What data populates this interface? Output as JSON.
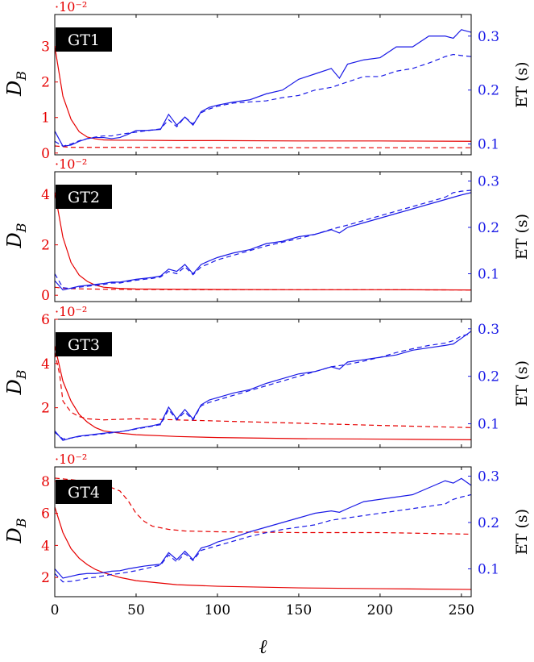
{
  "colors": {
    "left_axis": "#e60000",
    "right_axis": "#1a1ae6",
    "frame": "#000000",
    "badge_bg": "#000000",
    "badge_text": "#ffffff"
  },
  "chart_data": [
    {
      "type": "line",
      "panel_label": "GT1",
      "ylabel_left": "D_B",
      "ylabel_left_plain": "D",
      "ylabel_left_sub": "B",
      "ylabel_right": "ET (s)",
      "left_multiplier": "·10⁻²",
      "x_ticks": [],
      "xlim": [
        0,
        256
      ],
      "ylim_left": [
        -0.05,
        3.9
      ],
      "ylim_right": [
        0.08,
        0.34
      ],
      "yticks_left": [
        0,
        1,
        2,
        3
      ],
      "yticks_right": [
        0.1,
        0.2,
        0.3
      ],
      "series": [
        {
          "axis": "left",
          "style": "solid",
          "x": [
            0,
            5,
            10,
            15,
            20,
            25,
            30,
            40,
            50,
            75,
            100,
            150,
            200,
            256
          ],
          "values": [
            3.0,
            1.6,
            0.95,
            0.6,
            0.45,
            0.4,
            0.37,
            0.36,
            0.36,
            0.35,
            0.35,
            0.34,
            0.34,
            0.33
          ]
        },
        {
          "axis": "left",
          "style": "dashed",
          "x": [
            0,
            5,
            10,
            20,
            30,
            50,
            100,
            150,
            200,
            256
          ],
          "values": [
            0.2,
            0.18,
            0.16,
            0.16,
            0.16,
            0.16,
            0.15,
            0.15,
            0.15,
            0.15
          ]
        },
        {
          "axis": "right",
          "style": "solid",
          "x": [
            0,
            5,
            10,
            15,
            20,
            25,
            30,
            35,
            40,
            45,
            50,
            55,
            60,
            65,
            70,
            75,
            80,
            85,
            90,
            95,
            100,
            110,
            120,
            130,
            140,
            150,
            160,
            170,
            175,
            180,
            190,
            200,
            210,
            220,
            230,
            240,
            245,
            250,
            256
          ],
          "values": [
            0.124,
            0.096,
            0.098,
            0.105,
            0.11,
            0.112,
            0.112,
            0.11,
            0.112,
            0.118,
            0.125,
            0.125,
            0.126,
            0.127,
            0.155,
            0.135,
            0.15,
            0.135,
            0.16,
            0.168,
            0.172,
            0.178,
            0.182,
            0.193,
            0.2,
            0.22,
            0.23,
            0.24,
            0.222,
            0.248,
            0.256,
            0.26,
            0.28,
            0.28,
            0.3,
            0.3,
            0.296,
            0.312,
            0.307
          ]
        },
        {
          "axis": "right",
          "style": "dashed",
          "x": [
            0,
            5,
            10,
            15,
            20,
            25,
            30,
            35,
            40,
            45,
            50,
            55,
            60,
            65,
            70,
            75,
            80,
            85,
            90,
            95,
            100,
            110,
            120,
            130,
            140,
            150,
            160,
            170,
            180,
            190,
            200,
            210,
            220,
            230,
            240,
            245,
            250,
            256
          ],
          "values": [
            0.105,
            0.096,
            0.1,
            0.106,
            0.11,
            0.113,
            0.115,
            0.115,
            0.118,
            0.12,
            0.122,
            0.124,
            0.126,
            0.128,
            0.145,
            0.132,
            0.15,
            0.137,
            0.158,
            0.165,
            0.17,
            0.176,
            0.178,
            0.18,
            0.186,
            0.19,
            0.2,
            0.205,
            0.215,
            0.225,
            0.225,
            0.235,
            0.24,
            0.25,
            0.262,
            0.266,
            0.264,
            0.262
          ]
        }
      ]
    },
    {
      "type": "line",
      "panel_label": "GT2",
      "ylabel_left": "D_B",
      "ylabel_left_plain": "D",
      "ylabel_left_sub": "B",
      "ylabel_right": "ET (s)",
      "left_multiplier": "·10⁻²",
      "x_ticks": [],
      "xlim": [
        0,
        256
      ],
      "ylim_left": [
        -0.25,
        4.9
      ],
      "ylim_right": [
        0.04,
        0.32
      ],
      "yticks_left": [
        0,
        2,
        4
      ],
      "yticks_right": [
        0.1,
        0.2,
        0.3
      ],
      "series": [
        {
          "axis": "left",
          "style": "solid",
          "x": [
            0,
            5,
            10,
            15,
            20,
            25,
            30,
            40,
            50,
            75,
            100,
            150,
            200,
            256
          ],
          "values": [
            4.1,
            2.3,
            1.3,
            0.8,
            0.55,
            0.4,
            0.32,
            0.27,
            0.25,
            0.24,
            0.23,
            0.22,
            0.22,
            0.21
          ]
        },
        {
          "axis": "left",
          "style": "dashed",
          "x": [
            0,
            5,
            10,
            20,
            30,
            50,
            100,
            150,
            200,
            256
          ],
          "values": [
            0.32,
            0.28,
            0.26,
            0.25,
            0.24,
            0.23,
            0.22,
            0.22,
            0.22,
            0.21
          ]
        },
        {
          "axis": "right",
          "style": "solid",
          "x": [
            0,
            5,
            10,
            15,
            20,
            25,
            30,
            35,
            40,
            45,
            50,
            55,
            60,
            65,
            70,
            75,
            80,
            85,
            90,
            95,
            100,
            110,
            120,
            130,
            140,
            150,
            160,
            170,
            175,
            180,
            190,
            200,
            210,
            220,
            230,
            240,
            245,
            250,
            256
          ],
          "values": [
            0.085,
            0.065,
            0.069,
            0.073,
            0.075,
            0.077,
            0.079,
            0.082,
            0.082,
            0.085,
            0.088,
            0.09,
            0.092,
            0.095,
            0.11,
            0.105,
            0.12,
            0.1,
            0.12,
            0.128,
            0.135,
            0.145,
            0.152,
            0.165,
            0.17,
            0.18,
            0.185,
            0.195,
            0.188,
            0.2,
            0.21,
            0.22,
            0.23,
            0.24,
            0.25,
            0.26,
            0.265,
            0.27,
            0.275
          ]
        },
        {
          "axis": "right",
          "style": "dashed",
          "x": [
            0,
            5,
            10,
            15,
            20,
            25,
            30,
            35,
            40,
            45,
            50,
            55,
            60,
            65,
            70,
            75,
            80,
            85,
            90,
            95,
            100,
            110,
            120,
            130,
            140,
            150,
            160,
            170,
            180,
            190,
            200,
            210,
            220,
            230,
            240,
            245,
            250,
            256
          ],
          "values": [
            0.1,
            0.07,
            0.068,
            0.071,
            0.073,
            0.075,
            0.077,
            0.08,
            0.08,
            0.083,
            0.086,
            0.088,
            0.09,
            0.093,
            0.105,
            0.1,
            0.115,
            0.098,
            0.115,
            0.122,
            0.13,
            0.14,
            0.15,
            0.16,
            0.168,
            0.176,
            0.185,
            0.196,
            0.205,
            0.215,
            0.225,
            0.235,
            0.245,
            0.255,
            0.265,
            0.275,
            0.278,
            0.28
          ]
        }
      ]
    },
    {
      "type": "line",
      "panel_label": "GT3",
      "ylabel_left": "D_B",
      "ylabel_left_plain": "D",
      "ylabel_left_sub": "B",
      "ylabel_right": "ET (s)",
      "left_multiplier": "·10⁻²",
      "x_ticks": [],
      "xlim": [
        0,
        256
      ],
      "ylim_left": [
        0.2,
        6.0
      ],
      "ylim_right": [
        0.05,
        0.32
      ],
      "yticks_left": [
        2,
        4,
        6
      ],
      "yticks_right": [
        0.1,
        0.2,
        0.3
      ],
      "series": [
        {
          "axis": "left",
          "style": "solid",
          "x": [
            0,
            5,
            10,
            15,
            20,
            25,
            30,
            40,
            50,
            75,
            100,
            150,
            200,
            256
          ],
          "values": [
            4.8,
            3.2,
            2.3,
            1.7,
            1.35,
            1.1,
            0.95,
            0.85,
            0.78,
            0.7,
            0.65,
            0.6,
            0.58,
            0.55
          ]
        },
        {
          "axis": "left",
          "style": "dashed",
          "x": [
            0,
            3,
            5,
            8,
            10,
            15,
            20,
            30,
            50,
            75,
            100,
            150,
            200,
            256
          ],
          "values": [
            4.5,
            3.5,
            2.3,
            2.0,
            1.8,
            1.6,
            1.5,
            1.45,
            1.5,
            1.45,
            1.4,
            1.3,
            1.2,
            1.1
          ]
        },
        {
          "axis": "right",
          "style": "solid",
          "x": [
            0,
            5,
            10,
            15,
            20,
            25,
            30,
            35,
            40,
            45,
            50,
            55,
            60,
            65,
            70,
            75,
            80,
            85,
            90,
            95,
            100,
            110,
            120,
            130,
            140,
            150,
            160,
            170,
            175,
            180,
            190,
            200,
            210,
            220,
            230,
            240,
            245,
            250,
            256
          ],
          "values": [
            0.085,
            0.065,
            0.07,
            0.074,
            0.076,
            0.078,
            0.08,
            0.082,
            0.083,
            0.086,
            0.09,
            0.093,
            0.096,
            0.1,
            0.135,
            0.11,
            0.13,
            0.11,
            0.14,
            0.15,
            0.155,
            0.165,
            0.172,
            0.185,
            0.195,
            0.205,
            0.21,
            0.22,
            0.215,
            0.23,
            0.235,
            0.24,
            0.245,
            0.255,
            0.26,
            0.265,
            0.268,
            0.28,
            0.295
          ]
        },
        {
          "axis": "right",
          "style": "dashed",
          "x": [
            0,
            5,
            10,
            15,
            20,
            25,
            30,
            35,
            40,
            45,
            50,
            55,
            60,
            65,
            70,
            75,
            80,
            85,
            90,
            95,
            100,
            110,
            120,
            130,
            140,
            150,
            160,
            170,
            180,
            190,
            200,
            210,
            220,
            230,
            240,
            245,
            250,
            256
          ],
          "values": [
            0.082,
            0.068,
            0.07,
            0.073,
            0.075,
            0.077,
            0.079,
            0.081,
            0.083,
            0.086,
            0.089,
            0.092,
            0.095,
            0.098,
            0.13,
            0.108,
            0.125,
            0.108,
            0.138,
            0.145,
            0.15,
            0.16,
            0.17,
            0.18,
            0.19,
            0.2,
            0.21,
            0.22,
            0.225,
            0.232,
            0.24,
            0.25,
            0.258,
            0.265,
            0.27,
            0.275,
            0.285,
            0.29
          ]
        }
      ]
    },
    {
      "type": "line",
      "panel_label": "GT4",
      "ylabel_left": "D_B",
      "ylabel_left_plain": "D",
      "ylabel_left_sub": "B",
      "ylabel_right": "ET (s)",
      "left_multiplier": "·10⁻²",
      "x_ticks": [
        0,
        50,
        100,
        150,
        200,
        250
      ],
      "xlabel": "ℓ",
      "xlim": [
        0,
        256
      ],
      "ylim_left": [
        0.8,
        8.9
      ],
      "ylim_right": [
        0.04,
        0.32
      ],
      "yticks_left": [
        2,
        4,
        6,
        8
      ],
      "yticks_right": [
        0.1,
        0.2,
        0.3
      ],
      "series": [
        {
          "axis": "left",
          "style": "solid",
          "x": [
            0,
            5,
            10,
            15,
            20,
            25,
            30,
            40,
            50,
            75,
            100,
            150,
            200,
            256
          ],
          "values": [
            6.4,
            4.8,
            3.8,
            3.2,
            2.8,
            2.5,
            2.3,
            2.0,
            1.8,
            1.55,
            1.45,
            1.35,
            1.3,
            1.25
          ]
        },
        {
          "axis": "left",
          "style": "dashed",
          "x": [
            0,
            10,
            20,
            30,
            40,
            45,
            50,
            55,
            60,
            70,
            80,
            100,
            150,
            200,
            256
          ],
          "values": [
            8.2,
            8.1,
            8.0,
            7.8,
            7.4,
            6.8,
            6.0,
            5.5,
            5.2,
            5.0,
            4.9,
            4.85,
            4.8,
            4.8,
            4.7
          ]
        },
        {
          "axis": "right",
          "style": "solid",
          "x": [
            0,
            5,
            10,
            15,
            20,
            25,
            30,
            35,
            40,
            45,
            50,
            55,
            60,
            65,
            70,
            75,
            80,
            85,
            90,
            95,
            100,
            110,
            120,
            130,
            140,
            150,
            160,
            170,
            175,
            180,
            190,
            200,
            210,
            220,
            230,
            240,
            245,
            250,
            256
          ],
          "values": [
            0.1,
            0.08,
            0.084,
            0.088,
            0.09,
            0.09,
            0.092,
            0.095,
            0.096,
            0.1,
            0.103,
            0.106,
            0.108,
            0.11,
            0.135,
            0.12,
            0.138,
            0.12,
            0.145,
            0.15,
            0.158,
            0.168,
            0.18,
            0.19,
            0.2,
            0.21,
            0.22,
            0.225,
            0.222,
            0.23,
            0.245,
            0.25,
            0.255,
            0.26,
            0.275,
            0.29,
            0.285,
            0.295,
            0.28
          ]
        },
        {
          "axis": "right",
          "style": "dashed",
          "x": [
            0,
            5,
            10,
            15,
            20,
            25,
            30,
            35,
            40,
            45,
            50,
            55,
            60,
            65,
            70,
            75,
            80,
            85,
            90,
            95,
            100,
            110,
            120,
            130,
            140,
            150,
            160,
            170,
            180,
            190,
            200,
            210,
            220,
            230,
            240,
            245,
            250,
            256
          ],
          "values": [
            0.09,
            0.072,
            0.073,
            0.076,
            0.08,
            0.082,
            0.085,
            0.088,
            0.09,
            0.093,
            0.096,
            0.1,
            0.104,
            0.108,
            0.13,
            0.115,
            0.133,
            0.118,
            0.14,
            0.145,
            0.15,
            0.16,
            0.17,
            0.178,
            0.185,
            0.19,
            0.195,
            0.205,
            0.21,
            0.215,
            0.22,
            0.225,
            0.23,
            0.235,
            0.24,
            0.25,
            0.255,
            0.26
          ]
        }
      ]
    }
  ]
}
